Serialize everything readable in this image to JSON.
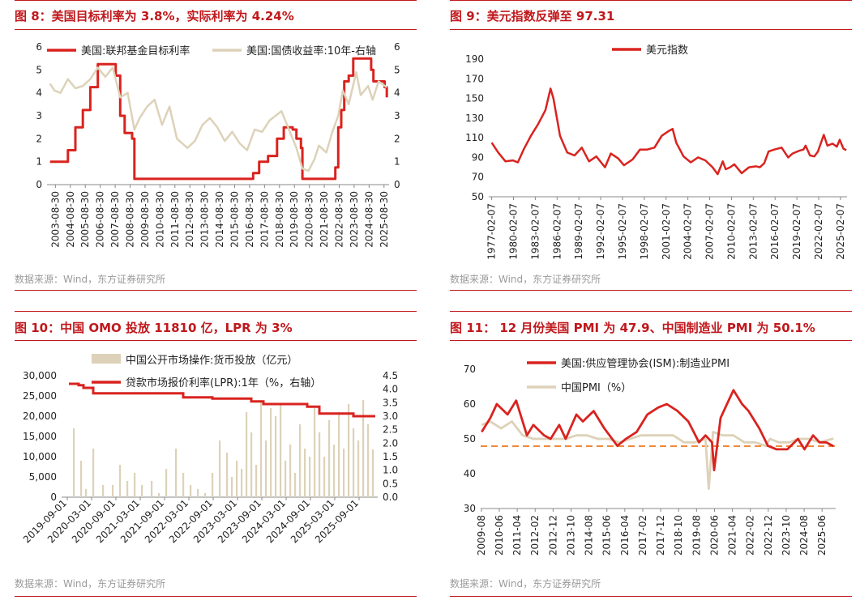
{
  "colors": {
    "red": "#d9231f",
    "beige": "#ddd2b9",
    "orange": "#ef8a3a",
    "title": "#c0181c"
  },
  "source": "数据来源：Wind，东方证券研究所",
  "chart_data": [
    {
      "id": "fig8",
      "title": "图 8：美国目标利率为 3.8%，实际利率为 4.24%",
      "type": "line",
      "x_ticks": [
        "2003-08-30",
        "2004-08-30",
        "2005-08-30",
        "2006-08-30",
        "2007-08-30",
        "2008-08-30",
        "2009-08-30",
        "2010-08-30",
        "2011-08-30",
        "2012-08-30",
        "2013-08-30",
        "2014-08-30",
        "2015-08-30",
        "2016-08-30",
        "2017-08-30",
        "2018-08-30",
        "2019-08-30",
        "2020-08-30",
        "2021-08-30",
        "2022-08-30",
        "2023-08-30",
        "2024-08-30",
        "2025-08-30"
      ],
      "ylim": [
        0,
        6
      ],
      "y_ticks": [
        "0",
        "1",
        "2",
        "3",
        "4",
        "5",
        "6"
      ],
      "y2lim": [
        0,
        6
      ],
      "y2_ticks": [
        "0",
        "1",
        "2",
        "3",
        "4",
        "5",
        "6"
      ],
      "legend": "top-left",
      "series": [
        {
          "name": "美国:联邦基金目标利率",
          "axis": "left",
          "color": "#d9231f",
          "x": [
            2003.3,
            2004.5,
            2005.0,
            2005.5,
            2006.0,
            2006.5,
            2007.5,
            2007.7,
            2008.0,
            2008.3,
            2008.8,
            2008.95,
            2015.9,
            2016.9,
            2017.3,
            2017.9,
            2018.5,
            2018.95,
            2019.55,
            2019.8,
            2020.1,
            2020.2,
            2022.2,
            2022.4,
            2022.6,
            2022.8,
            2023.0,
            2023.3,
            2023.6,
            2024.7,
            2024.8,
            2024.95,
            2025.7,
            2025.85
          ],
          "y": [
            1.0,
            1.5,
            2.5,
            3.25,
            4.25,
            5.25,
            5.25,
            4.75,
            3.0,
            2.25,
            2.0,
            0.25,
            0.25,
            0.5,
            1.0,
            1.25,
            2.0,
            2.5,
            2.4,
            2.0,
            1.6,
            0.25,
            0.25,
            0.75,
            2.5,
            3.25,
            4.5,
            4.75,
            5.5,
            5.5,
            5.0,
            4.5,
            4.25,
            3.8
          ]
        },
        {
          "name": "美国:国债收益率:10年-右轴",
          "axis": "right",
          "color": "#ddd2b9",
          "x": [
            2003.3,
            2003.6,
            2004.0,
            2004.5,
            2005.0,
            2005.5,
            2006.0,
            2006.5,
            2007.0,
            2007.5,
            2008.0,
            2008.5,
            2008.95,
            2009.3,
            2009.8,
            2010.3,
            2010.8,
            2011.3,
            2011.8,
            2012.5,
            2013.0,
            2013.5,
            2014.0,
            2014.5,
            2015.0,
            2015.5,
            2016.0,
            2016.5,
            2017.0,
            2017.5,
            2018.0,
            2018.8,
            2019.3,
            2019.8,
            2020.2,
            2020.6,
            2021.0,
            2021.3,
            2021.8,
            2022.2,
            2022.6,
            2022.9,
            2023.3,
            2023.8,
            2024.1,
            2024.6,
            2024.9,
            2025.3,
            2025.85
          ],
          "y": [
            4.4,
            4.1,
            4.0,
            4.6,
            4.2,
            4.3,
            4.6,
            5.1,
            4.7,
            5.1,
            3.8,
            4.0,
            2.4,
            2.9,
            3.4,
            3.7,
            2.6,
            3.4,
            2.0,
            1.6,
            1.9,
            2.6,
            2.9,
            2.5,
            1.9,
            2.3,
            1.8,
            1.5,
            2.4,
            2.3,
            2.8,
            3.2,
            2.4,
            1.6,
            0.7,
            0.6,
            1.1,
            1.7,
            1.4,
            2.3,
            3.0,
            4.1,
            3.5,
            4.9,
            3.9,
            4.3,
            3.7,
            4.5,
            4.24
          ]
        }
      ]
    },
    {
      "id": "fig9",
      "title": "图 9：美元指数反弹至 97.31",
      "type": "line",
      "x_ticks": [
        "1977-02-07",
        "1980-02-07",
        "1983-02-07",
        "1986-02-07",
        "1989-02-07",
        "1992-02-07",
        "1995-02-07",
        "1998-02-07",
        "2001-02-07",
        "2004-02-07",
        "2007-02-07",
        "2010-02-07",
        "2013-02-07",
        "2016-02-07",
        "2019-02-07",
        "2022-02-07",
        "2025-02-07"
      ],
      "ylim": [
        50,
        190
      ],
      "y_ticks": [
        "50",
        "70",
        "90",
        "110",
        "130",
        "150",
        "170",
        "190"
      ],
      "legend": "top-center",
      "series": [
        {
          "name": "美元指数",
          "color": "#d9231f",
          "x": [
            1977.1,
            1978.0,
            1979.0,
            1980.0,
            1980.7,
            1981.5,
            1982.5,
            1983.5,
            1984.5,
            1985.2,
            1985.6,
            1986.5,
            1987.5,
            1988.5,
            1989.5,
            1990.5,
            1991.5,
            1992.7,
            1993.5,
            1994.5,
            1995.3,
            1996.5,
            1997.5,
            1998.5,
            1999.5,
            2000.5,
            2001.5,
            2002.0,
            2002.5,
            2003.5,
            2004.5,
            2005.5,
            2006.5,
            2007.5,
            2008.2,
            2008.9,
            2009.3,
            2009.9,
            2010.5,
            2011.5,
            2012.5,
            2013.5,
            2014.0,
            2014.6,
            2015.2,
            2016.0,
            2017.0,
            2017.9,
            2018.5,
            2019.5,
            2020.0,
            2020.3,
            2020.9,
            2021.5,
            2022.0,
            2022.8,
            2023.3,
            2024.0,
            2024.6,
            2025.0,
            2025.5,
            2025.9
          ],
          "y": [
            105,
            95,
            86,
            87,
            85,
            98,
            112,
            124,
            138,
            160,
            150,
            112,
            95,
            92,
            100,
            86,
            91,
            80,
            94,
            89,
            82,
            88,
            98,
            98,
            100,
            112,
            117,
            119,
            105,
            91,
            85,
            90,
            87,
            80,
            73,
            86,
            78,
            80,
            83,
            74,
            80,
            81,
            80,
            84,
            96,
            98,
            100,
            90,
            94,
            97,
            98,
            102,
            92,
            91,
            96,
            113,
            102,
            104,
            101,
            108,
            99,
            97.31
          ]
        }
      ]
    },
    {
      "id": "fig10",
      "title": "图 10：中国 OMO 投放 11810 亿，LPR 为 3%",
      "type": "bar",
      "x_ticks": [
        "2019-09-01",
        "2020-03-01",
        "2020-09-01",
        "2021-03-01",
        "2021-09-01",
        "2022-03-01",
        "2022-09-01",
        "2023-03-01",
        "2023-09-01",
        "2024-03-01",
        "2024-09-01",
        "2025-03-01",
        "2025-09-01"
      ],
      "ylim": [
        0,
        30000
      ],
      "y_ticks": [
        "0",
        "5,000",
        "10,000",
        "15,000",
        "20,000",
        "25,000",
        "30,000"
      ],
      "y2lim": [
        0,
        4.5
      ],
      "y2_ticks": [
        "0.0",
        "0.5",
        "1.0",
        "1.5",
        "2.0",
        "2.5",
        "3.0",
        "3.5",
        "4.0",
        "4.5"
      ],
      "legend": "top-center",
      "series": [
        {
          "name": "中国公开市场操作:货币投放（亿元）",
          "kind": "bar",
          "axis": "left",
          "color": "#ddd2b9",
          "x": [
            2019.8,
            2019.95,
            2020.05,
            2020.2,
            2020.4,
            2020.6,
            2020.75,
            2020.9,
            2021.05,
            2021.2,
            2021.4,
            2021.55,
            2021.7,
            2021.9,
            2022.05,
            2022.2,
            2022.35,
            2022.5,
            2022.65,
            2022.8,
            2022.95,
            2023.05,
            2023.15,
            2023.25,
            2023.35,
            2023.45,
            2023.55,
            2023.65,
            2023.75,
            2023.85,
            2023.95,
            2024.05,
            2024.15,
            2024.25,
            2024.35,
            2024.45,
            2024.55,
            2024.65,
            2024.75,
            2024.85,
            2024.95,
            2025.05,
            2025.15,
            2025.25,
            2025.35,
            2025.45,
            2025.55,
            2025.65,
            2025.75,
            2025.85,
            2025.95
          ],
          "y": [
            17000,
            9000,
            2000,
            12000,
            3000,
            3000,
            8000,
            4000,
            6000,
            3000,
            4000,
            1000,
            7000,
            12000,
            6000,
            3000,
            2000,
            1000,
            6000,
            14000,
            11000,
            5000,
            9000,
            7000,
            21000,
            16000,
            8000,
            24000,
            14000,
            22000,
            20000,
            23000,
            9000,
            13000,
            6000,
            18000,
            12000,
            10000,
            22000,
            16000,
            10000,
            19000,
            13000,
            21000,
            12000,
            23000,
            17000,
            14000,
            24000,
            18000,
            11810
          ]
        },
        {
          "name": "贷款市场报价利率(LPR):1年（%，右轴）",
          "kind": "step",
          "axis": "right",
          "color": "#d9231f",
          "x": [
            2019.7,
            2019.9,
            2020.0,
            2020.2,
            2020.35,
            2022.05,
            2022.65,
            2023.45,
            2023.7,
            2024.6,
            2024.85,
            2025.45,
            2025.55,
            2026.0
          ],
          "y": [
            4.2,
            4.15,
            4.05,
            3.85,
            3.85,
            3.7,
            3.65,
            3.55,
            3.45,
            3.35,
            3.1,
            3.1,
            3.0,
            3.0
          ]
        }
      ]
    },
    {
      "id": "fig11",
      "title": "图 11： 12 月份美国 PMI 为 47.9、中国制造业 PMI 为 50.1%",
      "type": "line",
      "x_ticks": [
        "2009-08",
        "2010-06",
        "2011-04",
        "2012-02",
        "2012-12",
        "2013-10",
        "2014-08",
        "2015-06",
        "2016-04",
        "2017-02",
        "2017-12",
        "2018-10",
        "2019-08",
        "2020-06",
        "2021-04",
        "2022-02",
        "2022-12",
        "2023-10",
        "2024-08",
        "2025-06"
      ],
      "ylim": [
        30,
        70
      ],
      "y_ticks": [
        "30",
        "40",
        "50",
        "60",
        "70"
      ],
      "reference_line": 47.9,
      "legend": "top-left",
      "series": [
        {
          "name": "美国:供应管理协会(ISM):制造业PMI",
          "color": "#d9231f",
          "x": [
            2009.6,
            2010.0,
            2010.3,
            2010.8,
            2011.2,
            2011.7,
            2012.0,
            2012.5,
            2012.8,
            2013.2,
            2013.5,
            2014.0,
            2014.3,
            2014.8,
            2015.3,
            2015.9,
            2016.3,
            2016.8,
            2017.3,
            2017.8,
            2018.2,
            2018.7,
            2019.2,
            2019.7,
            2020.0,
            2020.3,
            2020.4,
            2020.7,
            2021.0,
            2021.3,
            2021.7,
            2022.0,
            2022.5,
            2022.9,
            2023.3,
            2023.8,
            2024.3,
            2024.6,
            2025.0,
            2025.3,
            2025.6,
            2025.95
          ],
          "y": [
            52,
            56,
            60,
            57,
            61,
            51,
            54,
            51,
            50,
            54,
            50,
            57,
            55,
            58,
            53,
            48,
            50,
            52,
            57,
            59,
            60,
            58,
            55,
            49,
            51,
            49,
            41,
            56,
            60,
            64,
            60,
            58,
            53,
            48,
            47,
            47,
            50,
            47,
            51,
            49,
            49,
            47.9
          ]
        },
        {
          "name": "中国PMI（%）",
          "color": "#ddd2b9",
          "x": [
            2009.6,
            2010.0,
            2010.5,
            2011.0,
            2011.5,
            2012.0,
            2012.5,
            2013.0,
            2013.5,
            2014.0,
            2014.5,
            2015.0,
            2015.5,
            2016.0,
            2016.5,
            2017.0,
            2017.5,
            2018.0,
            2018.5,
            2019.0,
            2019.5,
            2020.0,
            2020.15,
            2020.35,
            2020.8,
            2021.3,
            2021.8,
            2022.3,
            2022.8,
            2023.0,
            2023.4,
            2023.9,
            2024.3,
            2024.8,
            2025.3,
            2025.95
          ],
          "y": [
            54,
            55,
            53,
            55,
            51,
            50,
            50,
            50,
            50,
            51,
            51,
            50,
            50,
            49,
            50,
            51,
            51,
            51,
            51,
            49,
            49,
            50,
            35.7,
            52,
            51,
            51,
            49,
            49,
            48,
            50,
            49,
            49,
            50,
            50,
            49,
            50.1
          ]
        }
      ]
    }
  ]
}
